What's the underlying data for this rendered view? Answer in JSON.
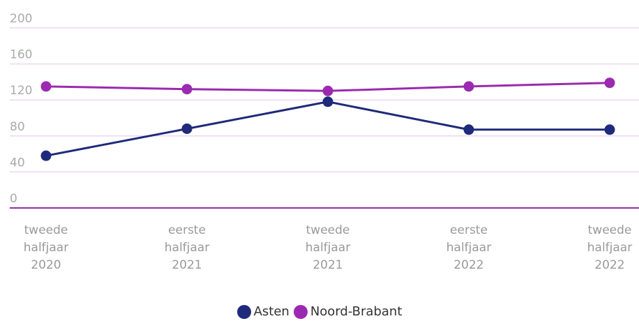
{
  "chart_data": {
    "type": "line",
    "categories": [
      "tweede halfjaar 2020",
      "eerste halfjaar 2021",
      "tweede halfjaar 2021",
      "eerste halfjaar 2022",
      "tweede halfjaar 2022"
    ],
    "series": [
      {
        "name": "Asten",
        "color": "#1f2a7a",
        "values": [
          58,
          88,
          118,
          87,
          87
        ]
      },
      {
        "name": "Noord-Brabant",
        "color": "#9b2ab0",
        "values": [
          135,
          132,
          130,
          135,
          139
        ]
      }
    ],
    "ylim": [
      0,
      200
    ],
    "yticks": [
      0,
      40,
      80,
      120,
      160,
      200
    ],
    "grid": true,
    "legend": "bottom"
  }
}
